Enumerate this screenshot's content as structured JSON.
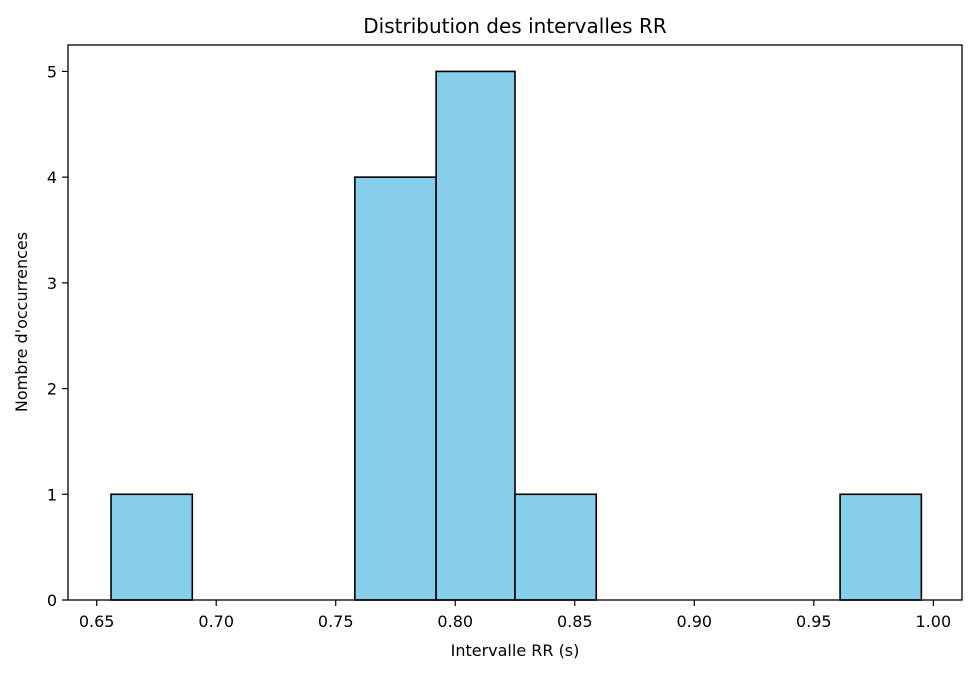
{
  "chart_data": {
    "type": "bar",
    "title": "Distribution des intervalles RR",
    "xlabel": "Intervalle RR (s)",
    "ylabel": "Nombre d'occurrences",
    "xlim": [
      0.638,
      1.012
    ],
    "ylim": [
      0,
      5.25
    ],
    "x_ticks": [
      0.65,
      0.7,
      0.75,
      0.8,
      0.85,
      0.9,
      0.95,
      1.0
    ],
    "x_tick_labels": [
      "0.65",
      "0.70",
      "0.75",
      "0.80",
      "0.85",
      "0.90",
      "0.95",
      "1.00"
    ],
    "y_ticks": [
      0,
      1,
      2,
      3,
      4,
      5
    ],
    "y_tick_labels": [
      "0",
      "1",
      "2",
      "3",
      "4",
      "5"
    ],
    "bins": [
      {
        "x0": 0.656,
        "x1": 0.69,
        "count": 1
      },
      {
        "x0": 0.69,
        "x1": 0.724,
        "count": 0
      },
      {
        "x0": 0.724,
        "x1": 0.758,
        "count": 0
      },
      {
        "x0": 0.758,
        "x1": 0.792,
        "count": 4
      },
      {
        "x0": 0.792,
        "x1": 0.825,
        "count": 5
      },
      {
        "x0": 0.825,
        "x1": 0.859,
        "count": 1
      },
      {
        "x0": 0.859,
        "x1": 0.893,
        "count": 0
      },
      {
        "x0": 0.893,
        "x1": 0.927,
        "count": 0
      },
      {
        "x0": 0.927,
        "x1": 0.961,
        "count": 0
      },
      {
        "x0": 0.961,
        "x1": 0.995,
        "count": 1
      }
    ],
    "bar_color": "#87ceeb",
    "edge_color": "#000000",
    "grid": false,
    "legend": "none"
  }
}
